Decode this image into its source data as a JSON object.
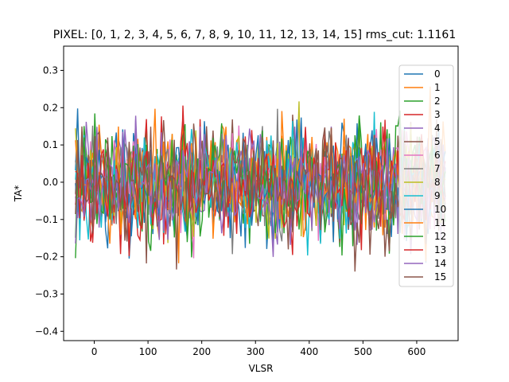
{
  "chart_data": {
    "type": "line",
    "title": "PIXEL: [0, 1, 2, 3, 4, 5, 6, 7, 8, 9, 10, 11, 12, 13, 14, 15]   rms_cut: 1.1161",
    "xlabel": "VLSR",
    "ylabel": "TA*",
    "xlim": [
      -57,
      677
    ],
    "ylim": [
      -0.425,
      0.365
    ],
    "x_range": [
      -35,
      655
    ],
    "x_ticks": [
      0,
      100,
      200,
      300,
      400,
      500,
      600
    ],
    "y_ticks": [
      -0.4,
      -0.3,
      -0.2,
      -0.1,
      0.0,
      0.1,
      0.2,
      0.3
    ],
    "x_tick_labels": [
      "0",
      "100",
      "200",
      "300",
      "400",
      "500",
      "600"
    ],
    "y_tick_labels": [
      "−0.4",
      "−0.3",
      "−0.2",
      "−0.1",
      "0.0",
      "0.1",
      "0.2",
      "0.3"
    ],
    "noise_amplitude": 0.075,
    "grid": false,
    "legend": "top-right",
    "series": [
      {
        "name": "0",
        "color": "#1f77b4"
      },
      {
        "name": "1",
        "color": "#ff7f0e"
      },
      {
        "name": "2",
        "color": "#2ca02c"
      },
      {
        "name": "3",
        "color": "#d62728"
      },
      {
        "name": "4",
        "color": "#9467bd"
      },
      {
        "name": "5",
        "color": "#8c564b"
      },
      {
        "name": "6",
        "color": "#e377c2"
      },
      {
        "name": "7",
        "color": "#7f7f7f"
      },
      {
        "name": "8",
        "color": "#bcbd22"
      },
      {
        "name": "9",
        "color": "#17becf"
      },
      {
        "name": "10",
        "color": "#1f77b4"
      },
      {
        "name": "11",
        "color": "#ff7f0e"
      },
      {
        "name": "12",
        "color": "#2ca02c"
      },
      {
        "name": "13",
        "color": "#d62728"
      },
      {
        "name": "14",
        "color": "#9467bd"
      },
      {
        "name": "15",
        "color": "#8c564b"
      }
    ]
  }
}
